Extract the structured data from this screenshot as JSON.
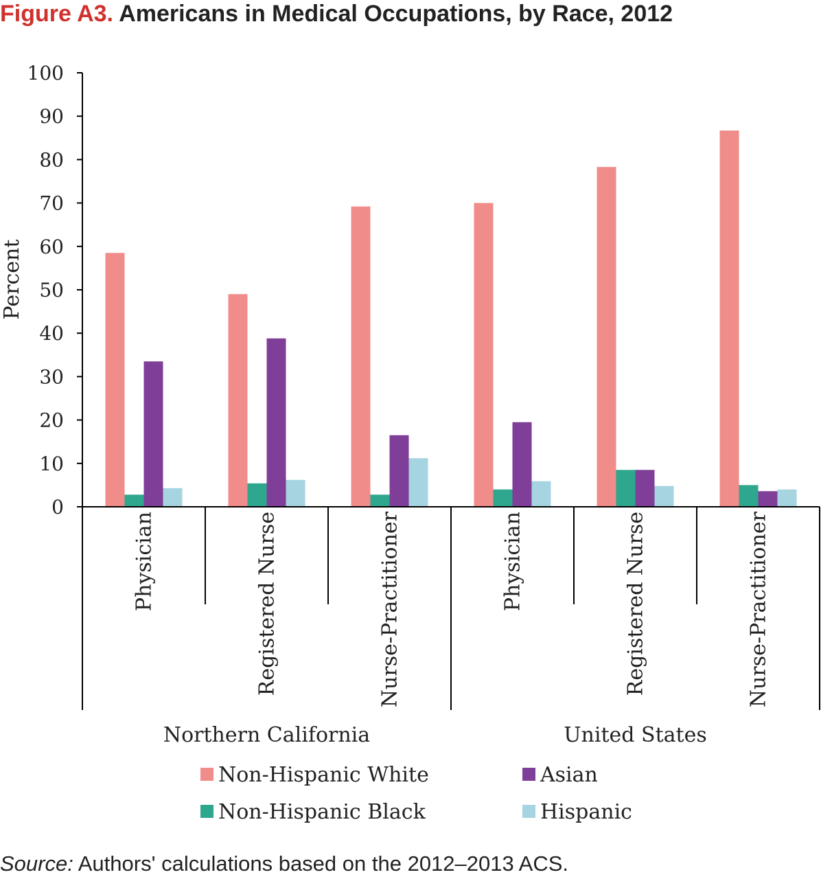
{
  "header": {
    "figure_label": "Figure A3.",
    "figure_title": "Americans in Medical Occupations, by Race, 2012"
  },
  "chart_data": {
    "type": "bar",
    "ylabel": "Percent",
    "ylim": [
      0,
      100
    ],
    "yticks": [
      0,
      10,
      20,
      30,
      40,
      50,
      60,
      70,
      80,
      90,
      100
    ],
    "grid": false,
    "legend_position": "bottom",
    "groups": [
      {
        "name": "Northern California",
        "categories": [
          "Physician",
          "Registered Nurse",
          "Nurse-Practitioner"
        ]
      },
      {
        "name": "United States",
        "categories": [
          "Physician",
          "Registered Nurse",
          "Nurse-Practitioner"
        ]
      }
    ],
    "categories": [
      "Physician",
      "Registered Nurse",
      "Nurse-Practitioner",
      "Physician",
      "Registered Nurse",
      "Nurse-Practitioner"
    ],
    "series": [
      {
        "name": "Non-Hispanic White",
        "color": "#f08c8a",
        "values": [
          58.5,
          49,
          69.2,
          70,
          78.3,
          86.7
        ]
      },
      {
        "name": "Non-Hispanic Black",
        "color": "#2fa68e",
        "values": [
          2.8,
          5.4,
          2.8,
          4,
          8.5,
          5
        ]
      },
      {
        "name": "Asian",
        "color": "#7f3f98",
        "values": [
          33.5,
          38.8,
          16.5,
          19.5,
          8.5,
          3.6
        ]
      },
      {
        "name": "Hispanic",
        "color": "#a6d4e0",
        "values": [
          4.3,
          6.2,
          11.2,
          5.9,
          4.8,
          4
        ]
      }
    ]
  },
  "footer": {
    "source_label": "Source:",
    "source_text": " Authors' calculations based on the 2012–2013 ACS."
  }
}
